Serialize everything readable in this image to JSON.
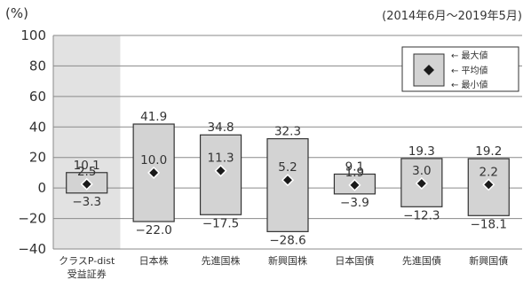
{
  "chart_data": {
    "type": "bar",
    "subtype": "range (min–max) with average marker",
    "y_unit": "(%)",
    "period": "(2014年6月～2019年5月)",
    "ylim": [
      -40,
      100
    ],
    "yticks": [
      100,
      80,
      60,
      40,
      20,
      0,
      -20,
      -40
    ],
    "grid": true,
    "legend_position": "top-right",
    "legend": {
      "max_label": "← 最大値",
      "avg_label": "← 平均値",
      "min_label": "← 最小値"
    },
    "categories": [
      [
        "クラスP-dist",
        "受益証券"
      ],
      [
        "日本株"
      ],
      [
        "先進国株"
      ],
      [
        "新興国株"
      ],
      [
        "日本国債"
      ],
      [
        "先進国債"
      ],
      [
        "新興国債"
      ]
    ],
    "highlighted_category_index": 0,
    "max": [
      10.1,
      41.9,
      34.8,
      32.3,
      9.1,
      19.3,
      19.2
    ],
    "avg": [
      2.5,
      10.0,
      11.3,
      5.2,
      1.9,
      3.0,
      2.2
    ],
    "min": [
      -3.3,
      -22.0,
      -17.5,
      -28.6,
      -3.9,
      -12.3,
      -18.1
    ],
    "max_text": [
      "10.1",
      "41.9",
      "34.8",
      "32.3",
      "9.1",
      "19.3",
      "19.2"
    ],
    "avg_text": [
      "2.5",
      "10.0",
      "11.3",
      "5.2",
      "1.9",
      "3.0",
      "2.2"
    ],
    "min_text": [
      "−3.3",
      "−22.0",
      "−17.5",
      "−28.6",
      "−3.9",
      "−12.3",
      "−18.1"
    ],
    "colors": {
      "bar_fill": "#d3d3d3",
      "bar_stroke": "#333333",
      "highlight_bg": "#e2e2e2",
      "grid": "#8a8a8a",
      "text": "#333333"
    }
  }
}
